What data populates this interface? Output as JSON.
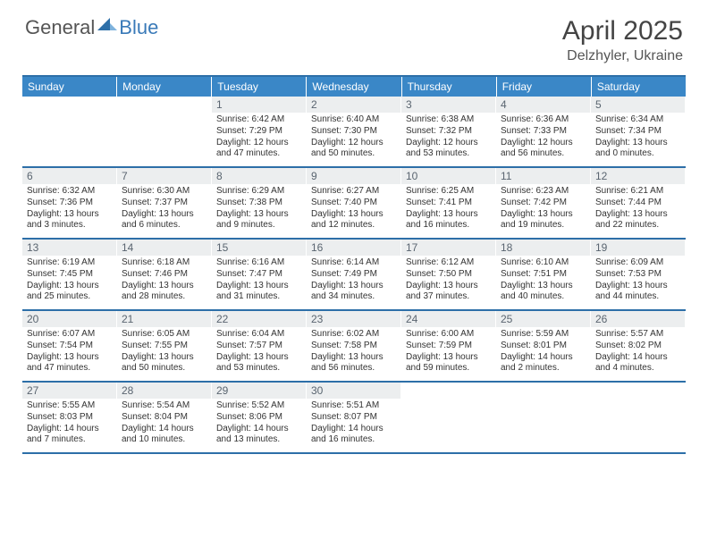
{
  "brand": {
    "part1": "General",
    "part2": "Blue"
  },
  "title": "April 2025",
  "location": "Delzhyler, Ukraine",
  "colors": {
    "header_bg": "#3a87c7",
    "border": "#2d6fa8",
    "daynum_bg": "#eceeef",
    "daynum_fg": "#5a6570",
    "text": "#333333",
    "brand_gray": "#555555",
    "brand_blue": "#3a7ab8"
  },
  "dow": [
    "Sunday",
    "Monday",
    "Tuesday",
    "Wednesday",
    "Thursday",
    "Friday",
    "Saturday"
  ],
  "weeks": [
    [
      null,
      null,
      {
        "n": "1",
        "sr": "6:42 AM",
        "ss": "7:29 PM",
        "dl": "12 hours and 47 minutes."
      },
      {
        "n": "2",
        "sr": "6:40 AM",
        "ss": "7:30 PM",
        "dl": "12 hours and 50 minutes."
      },
      {
        "n": "3",
        "sr": "6:38 AM",
        "ss": "7:32 PM",
        "dl": "12 hours and 53 minutes."
      },
      {
        "n": "4",
        "sr": "6:36 AM",
        "ss": "7:33 PM",
        "dl": "12 hours and 56 minutes."
      },
      {
        "n": "5",
        "sr": "6:34 AM",
        "ss": "7:34 PM",
        "dl": "13 hours and 0 minutes."
      }
    ],
    [
      {
        "n": "6",
        "sr": "6:32 AM",
        "ss": "7:36 PM",
        "dl": "13 hours and 3 minutes."
      },
      {
        "n": "7",
        "sr": "6:30 AM",
        "ss": "7:37 PM",
        "dl": "13 hours and 6 minutes."
      },
      {
        "n": "8",
        "sr": "6:29 AM",
        "ss": "7:38 PM",
        "dl": "13 hours and 9 minutes."
      },
      {
        "n": "9",
        "sr": "6:27 AM",
        "ss": "7:40 PM",
        "dl": "13 hours and 12 minutes."
      },
      {
        "n": "10",
        "sr": "6:25 AM",
        "ss": "7:41 PM",
        "dl": "13 hours and 16 minutes."
      },
      {
        "n": "11",
        "sr": "6:23 AM",
        "ss": "7:42 PM",
        "dl": "13 hours and 19 minutes."
      },
      {
        "n": "12",
        "sr": "6:21 AM",
        "ss": "7:44 PM",
        "dl": "13 hours and 22 minutes."
      }
    ],
    [
      {
        "n": "13",
        "sr": "6:19 AM",
        "ss": "7:45 PM",
        "dl": "13 hours and 25 minutes."
      },
      {
        "n": "14",
        "sr": "6:18 AM",
        "ss": "7:46 PM",
        "dl": "13 hours and 28 minutes."
      },
      {
        "n": "15",
        "sr": "6:16 AM",
        "ss": "7:47 PM",
        "dl": "13 hours and 31 minutes."
      },
      {
        "n": "16",
        "sr": "6:14 AM",
        "ss": "7:49 PM",
        "dl": "13 hours and 34 minutes."
      },
      {
        "n": "17",
        "sr": "6:12 AM",
        "ss": "7:50 PM",
        "dl": "13 hours and 37 minutes."
      },
      {
        "n": "18",
        "sr": "6:10 AM",
        "ss": "7:51 PM",
        "dl": "13 hours and 40 minutes."
      },
      {
        "n": "19",
        "sr": "6:09 AM",
        "ss": "7:53 PM",
        "dl": "13 hours and 44 minutes."
      }
    ],
    [
      {
        "n": "20",
        "sr": "6:07 AM",
        "ss": "7:54 PM",
        "dl": "13 hours and 47 minutes."
      },
      {
        "n": "21",
        "sr": "6:05 AM",
        "ss": "7:55 PM",
        "dl": "13 hours and 50 minutes."
      },
      {
        "n": "22",
        "sr": "6:04 AM",
        "ss": "7:57 PM",
        "dl": "13 hours and 53 minutes."
      },
      {
        "n": "23",
        "sr": "6:02 AM",
        "ss": "7:58 PM",
        "dl": "13 hours and 56 minutes."
      },
      {
        "n": "24",
        "sr": "6:00 AM",
        "ss": "7:59 PM",
        "dl": "13 hours and 59 minutes."
      },
      {
        "n": "25",
        "sr": "5:59 AM",
        "ss": "8:01 PM",
        "dl": "14 hours and 2 minutes."
      },
      {
        "n": "26",
        "sr": "5:57 AM",
        "ss": "8:02 PM",
        "dl": "14 hours and 4 minutes."
      }
    ],
    [
      {
        "n": "27",
        "sr": "5:55 AM",
        "ss": "8:03 PM",
        "dl": "14 hours and 7 minutes."
      },
      {
        "n": "28",
        "sr": "5:54 AM",
        "ss": "8:04 PM",
        "dl": "14 hours and 10 minutes."
      },
      {
        "n": "29",
        "sr": "5:52 AM",
        "ss": "8:06 PM",
        "dl": "14 hours and 13 minutes."
      },
      {
        "n": "30",
        "sr": "5:51 AM",
        "ss": "8:07 PM",
        "dl": "14 hours and 16 minutes."
      },
      null,
      null,
      null
    ]
  ],
  "labels": {
    "sunrise": "Sunrise: ",
    "sunset": "Sunset: ",
    "daylight": "Daylight: "
  }
}
